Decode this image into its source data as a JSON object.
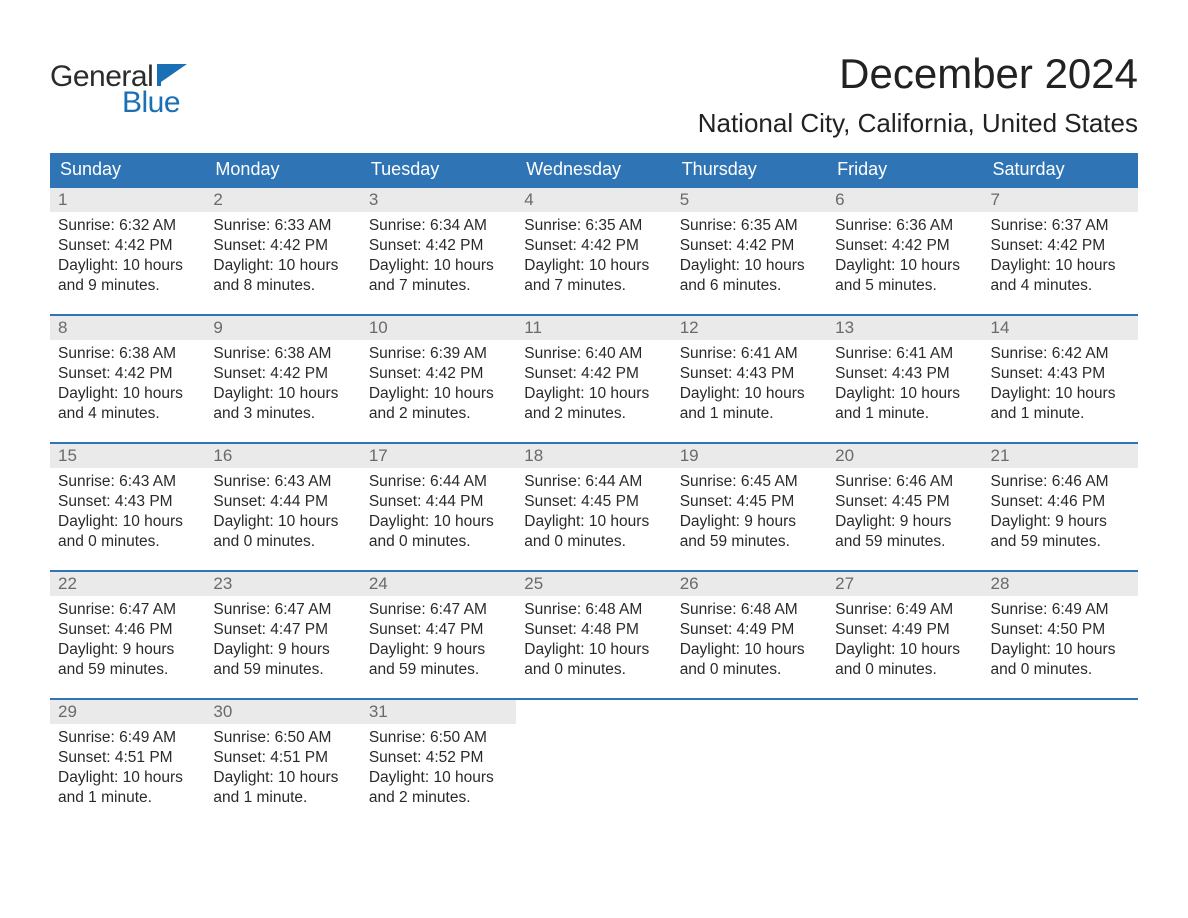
{
  "logo": {
    "text_top": "General",
    "text_bottom": "Blue",
    "flag_color": "#1a6fb5",
    "text_dark": "#2c2c2c"
  },
  "title": "December 2024",
  "location": "National City, California, United States",
  "colors": {
    "header_bg": "#2f74b5",
    "header_text": "#ffffff",
    "row_border": "#2f74b5",
    "daynum_bg": "#eaeaea",
    "daynum_text": "#6a6a6a",
    "body_text": "#2a2a2a",
    "page_bg": "#ffffff"
  },
  "day_headers": [
    "Sunday",
    "Monday",
    "Tuesday",
    "Wednesday",
    "Thursday",
    "Friday",
    "Saturday"
  ],
  "weeks": [
    [
      {
        "n": "1",
        "sunrise": "Sunrise: 6:32 AM",
        "sunset": "Sunset: 4:42 PM",
        "dl1": "Daylight: 10 hours",
        "dl2": "and 9 minutes."
      },
      {
        "n": "2",
        "sunrise": "Sunrise: 6:33 AM",
        "sunset": "Sunset: 4:42 PM",
        "dl1": "Daylight: 10 hours",
        "dl2": "and 8 minutes."
      },
      {
        "n": "3",
        "sunrise": "Sunrise: 6:34 AM",
        "sunset": "Sunset: 4:42 PM",
        "dl1": "Daylight: 10 hours",
        "dl2": "and 7 minutes."
      },
      {
        "n": "4",
        "sunrise": "Sunrise: 6:35 AM",
        "sunset": "Sunset: 4:42 PM",
        "dl1": "Daylight: 10 hours",
        "dl2": "and 7 minutes."
      },
      {
        "n": "5",
        "sunrise": "Sunrise: 6:35 AM",
        "sunset": "Sunset: 4:42 PM",
        "dl1": "Daylight: 10 hours",
        "dl2": "and 6 minutes."
      },
      {
        "n": "6",
        "sunrise": "Sunrise: 6:36 AM",
        "sunset": "Sunset: 4:42 PM",
        "dl1": "Daylight: 10 hours",
        "dl2": "and 5 minutes."
      },
      {
        "n": "7",
        "sunrise": "Sunrise: 6:37 AM",
        "sunset": "Sunset: 4:42 PM",
        "dl1": "Daylight: 10 hours",
        "dl2": "and 4 minutes."
      }
    ],
    [
      {
        "n": "8",
        "sunrise": "Sunrise: 6:38 AM",
        "sunset": "Sunset: 4:42 PM",
        "dl1": "Daylight: 10 hours",
        "dl2": "and 4 minutes."
      },
      {
        "n": "9",
        "sunrise": "Sunrise: 6:38 AM",
        "sunset": "Sunset: 4:42 PM",
        "dl1": "Daylight: 10 hours",
        "dl2": "and 3 minutes."
      },
      {
        "n": "10",
        "sunrise": "Sunrise: 6:39 AM",
        "sunset": "Sunset: 4:42 PM",
        "dl1": "Daylight: 10 hours",
        "dl2": "and 2 minutes."
      },
      {
        "n": "11",
        "sunrise": "Sunrise: 6:40 AM",
        "sunset": "Sunset: 4:42 PM",
        "dl1": "Daylight: 10 hours",
        "dl2": "and 2 minutes."
      },
      {
        "n": "12",
        "sunrise": "Sunrise: 6:41 AM",
        "sunset": "Sunset: 4:43 PM",
        "dl1": "Daylight: 10 hours",
        "dl2": "and 1 minute."
      },
      {
        "n": "13",
        "sunrise": "Sunrise: 6:41 AM",
        "sunset": "Sunset: 4:43 PM",
        "dl1": "Daylight: 10 hours",
        "dl2": "and 1 minute."
      },
      {
        "n": "14",
        "sunrise": "Sunrise: 6:42 AM",
        "sunset": "Sunset: 4:43 PM",
        "dl1": "Daylight: 10 hours",
        "dl2": "and 1 minute."
      }
    ],
    [
      {
        "n": "15",
        "sunrise": "Sunrise: 6:43 AM",
        "sunset": "Sunset: 4:43 PM",
        "dl1": "Daylight: 10 hours",
        "dl2": "and 0 minutes."
      },
      {
        "n": "16",
        "sunrise": "Sunrise: 6:43 AM",
        "sunset": "Sunset: 4:44 PM",
        "dl1": "Daylight: 10 hours",
        "dl2": "and 0 minutes."
      },
      {
        "n": "17",
        "sunrise": "Sunrise: 6:44 AM",
        "sunset": "Sunset: 4:44 PM",
        "dl1": "Daylight: 10 hours",
        "dl2": "and 0 minutes."
      },
      {
        "n": "18",
        "sunrise": "Sunrise: 6:44 AM",
        "sunset": "Sunset: 4:45 PM",
        "dl1": "Daylight: 10 hours",
        "dl2": "and 0 minutes."
      },
      {
        "n": "19",
        "sunrise": "Sunrise: 6:45 AM",
        "sunset": "Sunset: 4:45 PM",
        "dl1": "Daylight: 9 hours",
        "dl2": "and 59 minutes."
      },
      {
        "n": "20",
        "sunrise": "Sunrise: 6:46 AM",
        "sunset": "Sunset: 4:45 PM",
        "dl1": "Daylight: 9 hours",
        "dl2": "and 59 minutes."
      },
      {
        "n": "21",
        "sunrise": "Sunrise: 6:46 AM",
        "sunset": "Sunset: 4:46 PM",
        "dl1": "Daylight: 9 hours",
        "dl2": "and 59 minutes."
      }
    ],
    [
      {
        "n": "22",
        "sunrise": "Sunrise: 6:47 AM",
        "sunset": "Sunset: 4:46 PM",
        "dl1": "Daylight: 9 hours",
        "dl2": "and 59 minutes."
      },
      {
        "n": "23",
        "sunrise": "Sunrise: 6:47 AM",
        "sunset": "Sunset: 4:47 PM",
        "dl1": "Daylight: 9 hours",
        "dl2": "and 59 minutes."
      },
      {
        "n": "24",
        "sunrise": "Sunrise: 6:47 AM",
        "sunset": "Sunset: 4:47 PM",
        "dl1": "Daylight: 9 hours",
        "dl2": "and 59 minutes."
      },
      {
        "n": "25",
        "sunrise": "Sunrise: 6:48 AM",
        "sunset": "Sunset: 4:48 PM",
        "dl1": "Daylight: 10 hours",
        "dl2": "and 0 minutes."
      },
      {
        "n": "26",
        "sunrise": "Sunrise: 6:48 AM",
        "sunset": "Sunset: 4:49 PM",
        "dl1": "Daylight: 10 hours",
        "dl2": "and 0 minutes."
      },
      {
        "n": "27",
        "sunrise": "Sunrise: 6:49 AM",
        "sunset": "Sunset: 4:49 PM",
        "dl1": "Daylight: 10 hours",
        "dl2": "and 0 minutes."
      },
      {
        "n": "28",
        "sunrise": "Sunrise: 6:49 AM",
        "sunset": "Sunset: 4:50 PM",
        "dl1": "Daylight: 10 hours",
        "dl2": "and 0 minutes."
      }
    ],
    [
      {
        "n": "29",
        "sunrise": "Sunrise: 6:49 AM",
        "sunset": "Sunset: 4:51 PM",
        "dl1": "Daylight: 10 hours",
        "dl2": "and 1 minute."
      },
      {
        "n": "30",
        "sunrise": "Sunrise: 6:50 AM",
        "sunset": "Sunset: 4:51 PM",
        "dl1": "Daylight: 10 hours",
        "dl2": "and 1 minute."
      },
      {
        "n": "31",
        "sunrise": "Sunrise: 6:50 AM",
        "sunset": "Sunset: 4:52 PM",
        "dl1": "Daylight: 10 hours",
        "dl2": "and 2 minutes."
      },
      null,
      null,
      null,
      null
    ]
  ]
}
